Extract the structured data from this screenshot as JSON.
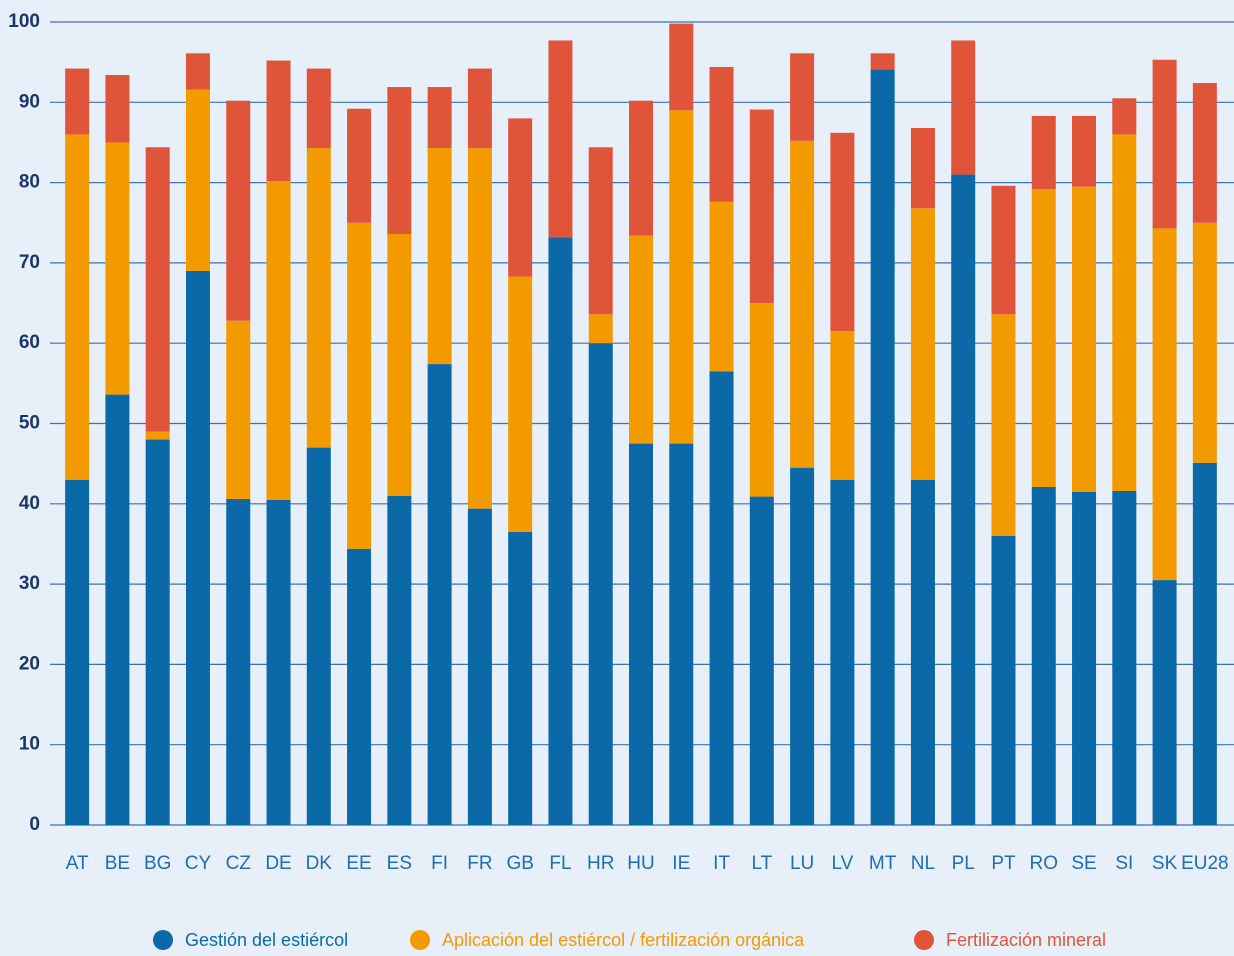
{
  "chart_data": {
    "type": "stacked_bar",
    "categories": [
      "AT",
      "BE",
      "BG",
      "CY",
      "CZ",
      "DE",
      "DK",
      "EE",
      "ES",
      "FI",
      "FR",
      "GB",
      "FL",
      "HR",
      "HU",
      "IE",
      "IT",
      "LT",
      "LU",
      "LV",
      "MT",
      "NL",
      "PL",
      "PT",
      "RO",
      "SE",
      "SI",
      "SK",
      "EU28"
    ],
    "series": [
      {
        "name": "Gestión del estiércol",
        "color": "#0b69a8",
        "values": [
          43,
          53.6,
          48,
          69,
          40.6,
          40.5,
          47,
          34.4,
          41,
          57.4,
          39.4,
          36.5,
          73.2,
          60,
          47.5,
          47.5,
          56.5,
          40.9,
          44.5,
          43,
          94.1,
          43,
          81,
          36,
          42.1,
          41.5,
          41.6,
          30.5,
          45.1
        ]
      },
      {
        "name": "Aplicación del estiércol / fertilización orgánica",
        "color": "#f39a00",
        "values": [
          43,
          31.4,
          1,
          22.6,
          22.2,
          39.7,
          37.3,
          40.6,
          32.6,
          26.9,
          44.9,
          31.8,
          0,
          3.6,
          25.9,
          41.5,
          21.1,
          24.1,
          40.7,
          18.5,
          0,
          33.8,
          0,
          27.6,
          37.1,
          38,
          44.4,
          43.8,
          29.9
        ]
      },
      {
        "name": "Fertilización mineral",
        "color": "#e0553a",
        "values": [
          8.2,
          8.4,
          35.4,
          4.5,
          27.4,
          15,
          9.9,
          14.2,
          18.3,
          7.6,
          9.9,
          19.7,
          24.5,
          20.8,
          16.8,
          10.8,
          16.8,
          24.1,
          10.9,
          24.7,
          2,
          10,
          16.7,
          16,
          9.1,
          8.8,
          4.5,
          21,
          17.4
        ]
      }
    ],
    "ylim": [
      0,
      100
    ],
    "yticks": [
      0,
      10,
      20,
      30,
      40,
      50,
      60,
      70,
      80,
      90,
      100
    ],
    "grid": true
  }
}
